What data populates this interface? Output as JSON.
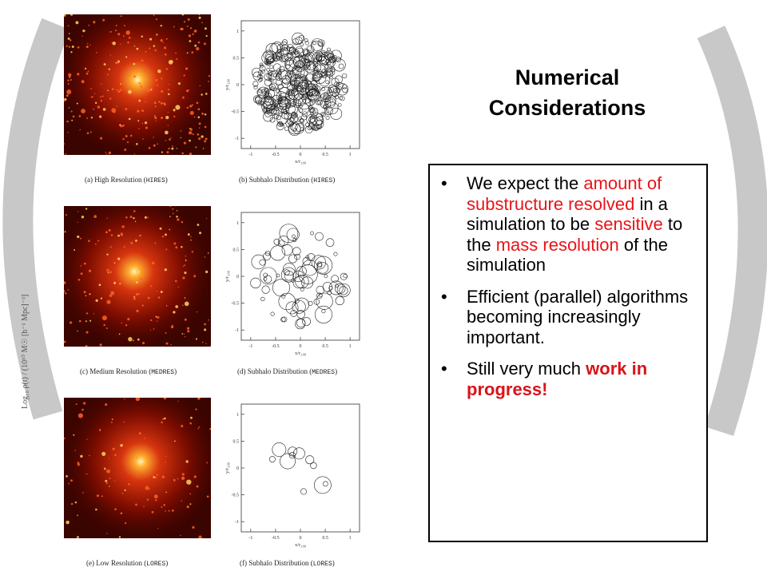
{
  "slide": {
    "title_line1": "Numerical",
    "title_line2": "Considerations",
    "bullets": [
      {
        "parts": [
          {
            "text": "We expect the ",
            "style": "normal"
          },
          {
            "text": "amount of substructure resolved",
            "style": "red"
          },
          {
            "text": " in a simulation to be ",
            "style": "normal"
          },
          {
            "text": "sensitive",
            "style": "red"
          },
          {
            "text": " to the ",
            "style": "normal"
          },
          {
            "text": "mass resolution",
            "style": "red"
          },
          {
            "text": " of the simulation",
            "style": "normal"
          }
        ]
      },
      {
        "parts": [
          {
            "text": "Efficient (parallel) algorithms becoming increasingly important.",
            "style": "normal"
          }
        ]
      },
      {
        "parts": [
          {
            "text": "Still very much ",
            "style": "normal"
          },
          {
            "text": "work in progress!",
            "style": "redb"
          }
        ]
      }
    ],
    "bullet_char": "•",
    "colors": {
      "highlight": "#e8141a",
      "arc": "#c8c8c8"
    }
  },
  "figure": {
    "side_text": "Log₁₀ ρ(t) / (10¹⁰ M☉ [h⁻¹ Mpc]⁻³]",
    "panels": [
      {
        "caption_pre": "(a) High Resolution (",
        "caption_code": "HIRES",
        "caption_post": ")"
      },
      {
        "caption_pre": "(b) Subhalo Distribution (",
        "caption_code": "HIRES",
        "caption_post": ")"
      },
      {
        "caption_pre": "(c) Medium Resolution (",
        "caption_code": "MEDRES",
        "caption_post": ")"
      },
      {
        "caption_pre": "(d) Subhalo Distribution (",
        "caption_code": "MEDRES",
        "caption_post": ")"
      },
      {
        "caption_pre": "(e) Low Resolution (",
        "caption_code": "LORES",
        "caption_post": ")"
      },
      {
        "caption_pre": "(f) Subhalo Distribution (",
        "caption_code": "LORES",
        "caption_post": ")"
      }
    ],
    "plot_axes": {
      "x_ticks": [
        "-1",
        "-0.5",
        "0",
        "0.5",
        "1"
      ],
      "y_ticks": [
        "1",
        "0.5",
        "0",
        "-0.5",
        "-1"
      ],
      "xlabel": "x/r₂₀₀",
      "ylabel": "y/r₂₀₀"
    }
  }
}
